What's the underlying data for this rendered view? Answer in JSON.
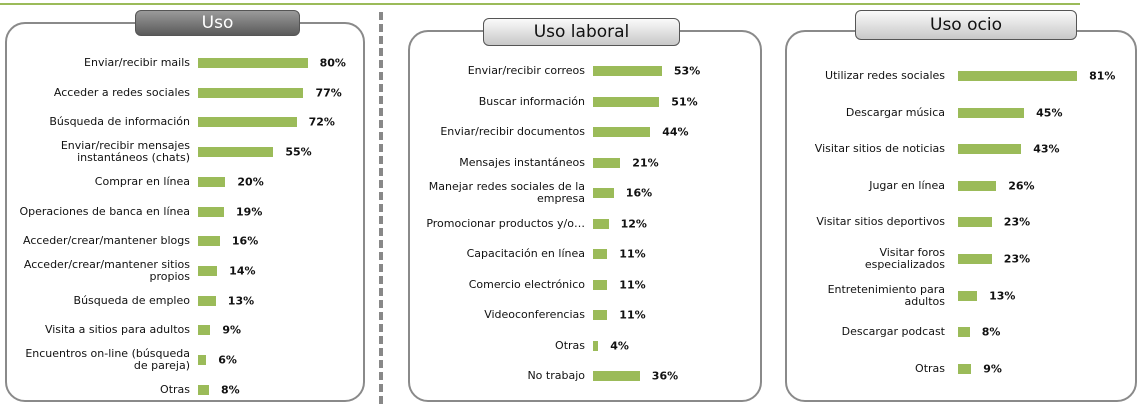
{
  "chart_data": [
    {
      "type": "bar",
      "title": "Uso",
      "color": "#9bbb59",
      "categories": [
        "Enviar/recibir mails",
        "Acceder a redes sociales",
        "Búsqueda de información",
        "Enviar/recibir mensajes instantáneos (chats)",
        "Comprar en línea",
        "Operaciones de banca en línea",
        "Acceder/crear/mantener blogs",
        "Acceder/crear/mantener sitios propios",
        "Búsqueda de empleo",
        "Visita a sitios para adultos",
        "Encuentros on-line (búsqueda de pareja)",
        "Otras"
      ],
      "values": [
        80,
        77,
        72,
        55,
        20,
        19,
        16,
        14,
        13,
        9,
        6,
        8
      ],
      "value_labels": [
        "80%",
        "77%",
        "72%",
        "55%",
        "20%",
        "19%",
        "16%",
        "14%",
        "13%",
        "9%",
        "6%",
        "8%"
      ]
    },
    {
      "type": "bar",
      "title": "Uso laboral",
      "color": "#9bbb59",
      "categories": [
        "Enviar/recibir correos",
        "Buscar información",
        "Enviar/recibir documentos",
        "Mensajes instantáneos",
        "Manejar redes sociales de la empresa",
        "Promocionar productos y/o…",
        "Capacitación en línea",
        "Comercio electrónico",
        "Videoconferencias",
        "Otras",
        "No trabajo"
      ],
      "values": [
        53,
        51,
        44,
        21,
        16,
        12,
        11,
        11,
        11,
        4,
        36
      ],
      "value_labels": [
        "53%",
        "51%",
        "44%",
        "21%",
        "16%",
        "12%",
        "11%",
        "11%",
        "11%",
        "4%",
        "36%"
      ]
    },
    {
      "type": "bar",
      "title": "Uso ocio",
      "color": "#9bbb59",
      "categories": [
        "Utilizar redes sociales",
        "Descargar música",
        "Visitar sitios de noticias",
        "Jugar en línea",
        "Visitar sitios deportivos",
        "Visitar foros especializados",
        "Entretenimiento para adultos",
        "Descargar podcast",
        "Otras"
      ],
      "values": [
        81,
        45,
        43,
        26,
        23,
        23,
        13,
        8,
        9
      ],
      "value_labels": [
        "81%",
        "45%",
        "43%",
        "26%",
        "23%",
        "23%",
        "13%",
        "8%",
        "9%"
      ]
    }
  ]
}
